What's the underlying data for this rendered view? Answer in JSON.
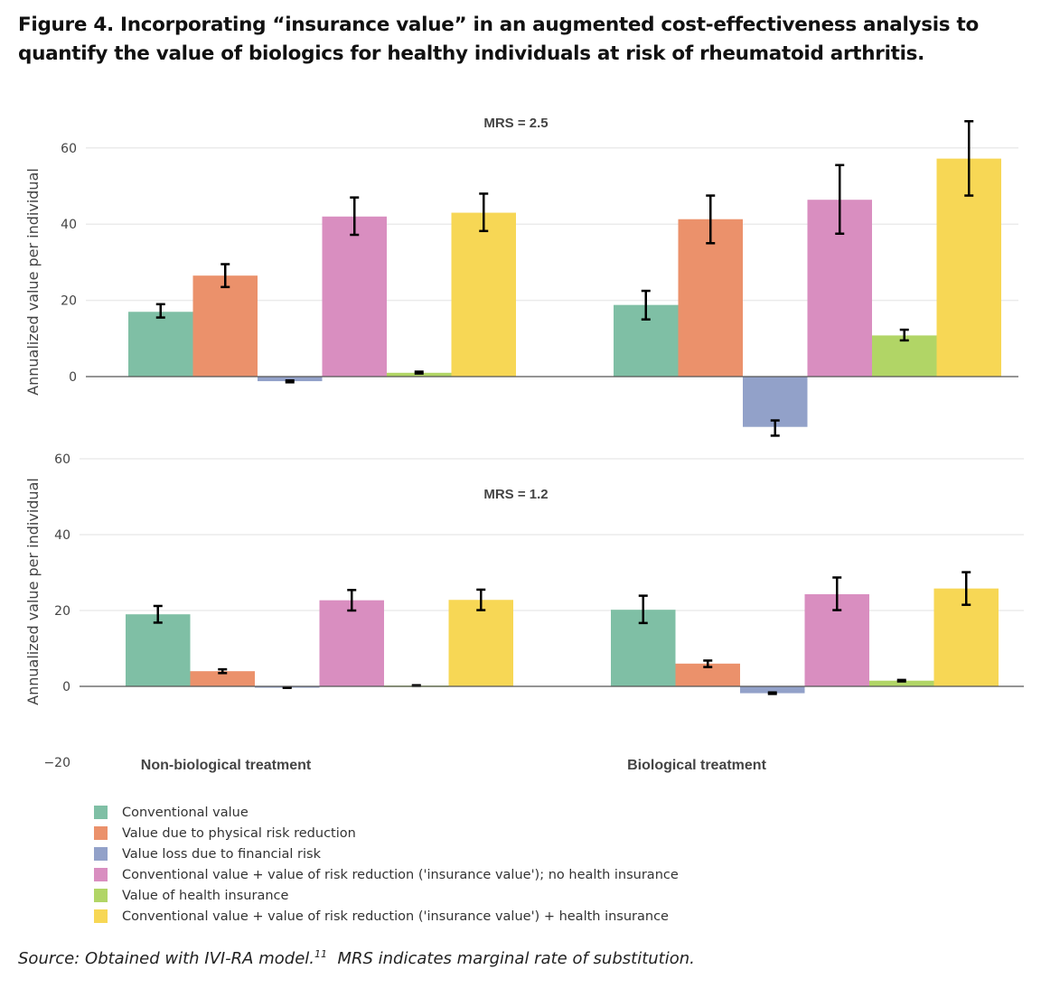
{
  "figure": {
    "title": "Figure 4. Incorporating “insurance value” in an augmented cost-effectiveness analysis to quantify the value of biologics for healthy individuals at risk of rheumatoid arthritis.",
    "source_label": "Source:",
    "source_text": "Obtained with IVI-RA model.",
    "source_ref": "11",
    "source_note": "MRS indicates marginal rate of substitution."
  },
  "chart_data": {
    "type": "bar",
    "categories": [
      "Non-biological treatment",
      "Biological treatment"
    ],
    "series_names": [
      "Conventional value",
      "Value due to physical risk reduction",
      "Value loss due to financial risk",
      "Conventional value + value of risk reduction ('insurance value'); no health insurance",
      "Value of health insurance",
      "Conventional value + value of risk reduction ('insurance value') + health insurance"
    ],
    "colors": [
      "#7fbfa5",
      "#eb916b",
      "#92a1c9",
      "#d98ec0",
      "#b1d566",
      "#f7d755"
    ],
    "ylabel": "Annualized value per individual",
    "legend_position": "bottom-left",
    "grid": true,
    "panels": [
      {
        "title": "MRS = 2.5",
        "ylim": [
          -20,
          60
        ],
        "yticks": [
          0,
          20,
          40,
          60
        ],
        "series": [
          {
            "name": "Conventional value",
            "values": [
              17.0,
              18.8
            ],
            "err_low": [
              15.5,
              15.0
            ],
            "err_high": [
              19.0,
              22.5
            ]
          },
          {
            "name": "Value due to physical risk reduction",
            "values": [
              26.5,
              41.3
            ],
            "err_low": [
              23.5,
              35.0
            ],
            "err_high": [
              29.5,
              47.5
            ]
          },
          {
            "name": "Value loss due to financial risk",
            "values": [
              -1.2,
              -13.2
            ],
            "err_low": [
              -1.5,
              -15.5
            ],
            "err_high": [
              -1.0,
              -11.5
            ]
          },
          {
            "name": "Conventional value + value of risk reduction ('insurance value'); no health insurance",
            "values": [
              42.0,
              46.4
            ],
            "err_low": [
              37.2,
              37.5
            ],
            "err_high": [
              47.0,
              55.5
            ]
          },
          {
            "name": "Value of health insurance",
            "values": [
              1.0,
              10.8
            ],
            "err_low": [
              0.8,
              9.5
            ],
            "err_high": [
              1.3,
              12.3
            ]
          },
          {
            "name": "Conventional value + value of risk reduction ('insurance value') + health insurance",
            "values": [
              43.0,
              57.2
            ],
            "err_low": [
              38.2,
              47.5
            ],
            "err_high": [
              48.0,
              67.0
            ]
          }
        ]
      },
      {
        "title": "MRS = 1.2",
        "ylim": [
          -20,
          60
        ],
        "yticks": [
          -20,
          0,
          20,
          40,
          60
        ],
        "series": [
          {
            "name": "Conventional value",
            "values": [
              19.0,
              20.2
            ],
            "err_low": [
              16.8,
              16.7
            ],
            "err_high": [
              21.2,
              23.9
            ]
          },
          {
            "name": "Value due to physical risk reduction",
            "values": [
              4.0,
              6.0
            ],
            "err_low": [
              3.5,
              5.1
            ],
            "err_high": [
              4.5,
              6.8
            ]
          },
          {
            "name": "Value loss due to financial risk",
            "values": [
              -0.3,
              -1.8
            ],
            "err_low": [
              -0.4,
              -2.0
            ],
            "err_high": [
              -0.2,
              -1.6
            ]
          },
          {
            "name": "Conventional value + value of risk reduction ('insurance value'); no health insurance",
            "values": [
              22.7,
              24.3
            ],
            "err_low": [
              20.0,
              20.1
            ],
            "err_high": [
              25.4,
              28.7
            ]
          },
          {
            "name": "Value of health insurance",
            "values": [
              0.2,
              1.5
            ],
            "err_low": [
              0.1,
              1.3
            ],
            "err_high": [
              0.3,
              1.7
            ]
          },
          {
            "name": "Conventional value + value of risk reduction ('insurance value') + health insurance",
            "values": [
              22.8,
              25.8
            ],
            "err_low": [
              20.1,
              21.5
            ],
            "err_high": [
              25.5,
              30.1
            ]
          }
        ]
      }
    ]
  }
}
